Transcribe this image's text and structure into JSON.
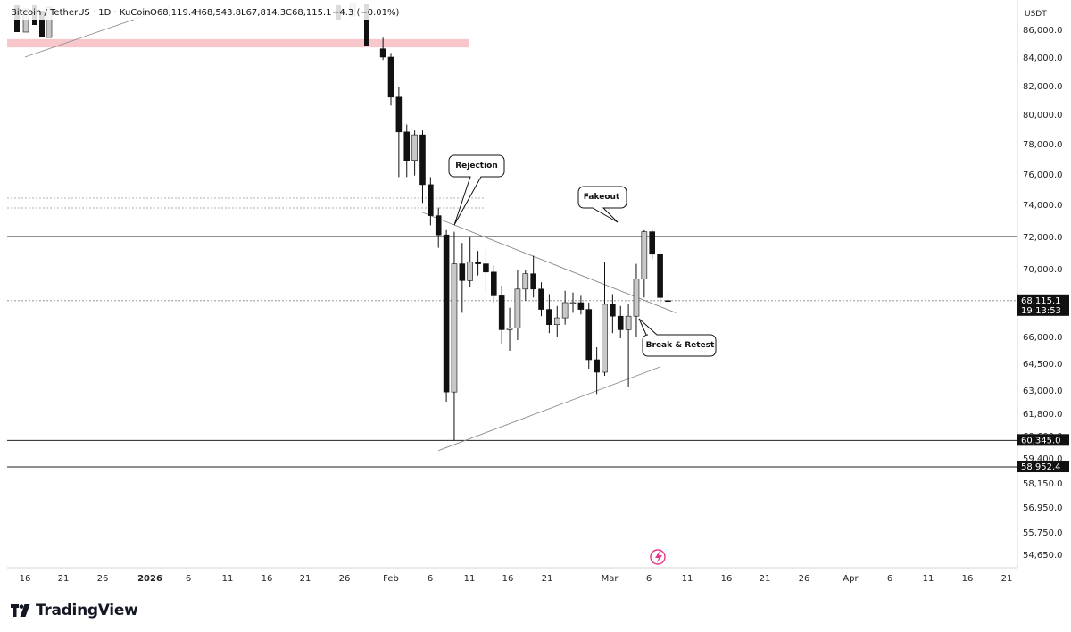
{
  "header": {
    "symbol": "Bitcoin / TetherUS · 1D · KuCoin",
    "open_label": "O68,119.4",
    "high_label": "H68,543.8",
    "low_label": "L67,814.3",
    "close_label": "C68,115.1",
    "change_label": "−4.3 (−0.01%)"
  },
  "price_axis": {
    "currency": "USDT",
    "ticks": [
      "86,000.0",
      "84,000.0",
      "82,000.0",
      "80,000.0",
      "78,000.0",
      "76,000.0",
      "74,000.0",
      "72,000.0",
      "70,000.0",
      "68,000.0",
      "66,000.0",
      "64,500.0",
      "63,000.0",
      "61,800.0",
      "60,600.0",
      "59,400.0",
      "58,150.0",
      "56,950.0",
      "55,750.0",
      "54,650.0"
    ],
    "last_price": "68,115.1",
    "countdown": "19:13:53",
    "level_tags": [
      "60,345.0",
      "58,952.4"
    ]
  },
  "time_axis": {
    "ticks": [
      "16",
      "21",
      "26",
      "2026",
      "6",
      "11",
      "16",
      "21",
      "26",
      "Feb",
      "6",
      "11",
      "16",
      "21",
      "Mar",
      "6",
      "11",
      "16",
      "21",
      "26",
      "Apr",
      "6",
      "11",
      "16",
      "21"
    ]
  },
  "annotations": {
    "rejection": "Rejection",
    "fakeout": "Fakeout",
    "break_retest": "Break & Retest"
  },
  "brand": {
    "name": "TradingView"
  },
  "colors": {
    "up_candle": "#c8c8c8",
    "down_candle": "#111111",
    "supply_zone": "#f7c7cc",
    "grid": "#eeeeee",
    "tag_background": "#111111"
  },
  "chart_data": {
    "type": "candlestick",
    "title": "Bitcoin / TetherUS · 1D · KuCoin",
    "ylabel": "USDT",
    "ylim": [
      54100,
      87200
    ],
    "x_axis_ticks": [
      "16 Dec",
      "21 Dec",
      "26 Dec",
      "2026",
      "6 Jan",
      "11 Jan",
      "16 Jan",
      "21 Jan",
      "26 Jan",
      "Feb",
      "6 Feb",
      "11 Feb",
      "16 Feb",
      "21 Feb",
      "Mar",
      "6 Mar",
      "11 Mar",
      "16 Mar",
      "21 Mar",
      "26 Mar",
      "Apr",
      "6 Apr",
      "11 Apr",
      "16 Apr",
      "21 Apr"
    ],
    "ohlc": {
      "open": 68119.4,
      "high": 68543.8,
      "low": 67814.3,
      "close": 68115.1,
      "change": -4.3,
      "change_pct": -0.01
    },
    "candles": [
      {
        "date": "2026-01-31",
        "open": 84600,
        "high": 85400,
        "low": 83800,
        "close": 84000
      },
      {
        "date": "2026-02-01",
        "open": 84000,
        "high": 84300,
        "low": 80600,
        "close": 81200
      },
      {
        "date": "2026-02-02",
        "open": 81200,
        "high": 81900,
        "low": 75800,
        "close": 78800
      },
      {
        "date": "2026-02-03",
        "open": 78800,
        "high": 79300,
        "low": 75800,
        "close": 76900
      },
      {
        "date": "2026-02-04",
        "open": 76900,
        "high": 78900,
        "low": 75900,
        "close": 78600
      },
      {
        "date": "2026-02-05",
        "open": 78600,
        "high": 78900,
        "low": 74100,
        "close": 75300
      },
      {
        "date": "2026-02-06",
        "open": 75300,
        "high": 75800,
        "low": 72700,
        "close": 73300
      },
      {
        "date": "2026-02-07",
        "open": 73300,
        "high": 73800,
        "low": 71300,
        "close": 72100
      },
      {
        "date": "2026-02-08",
        "open": 72100,
        "high": 72400,
        "low": 62400,
        "close": 62900
      },
      {
        "date": "2026-02-09",
        "open": 62900,
        "high": 72300,
        "low": 60345,
        "close": 70300
      },
      {
        "date": "2026-02-10",
        "open": 70300,
        "high": 71600,
        "low": 67400,
        "close": 69300
      },
      {
        "date": "2026-02-11",
        "open": 69300,
        "high": 72000,
        "low": 68900,
        "close": 70400
      },
      {
        "date": "2026-02-12",
        "open": 70400,
        "high": 71100,
        "low": 69600,
        "close": 70300
      },
      {
        "date": "2026-02-13",
        "open": 70300,
        "high": 71200,
        "low": 68600,
        "close": 69800
      },
      {
        "date": "2026-02-14",
        "open": 69800,
        "high": 70200,
        "low": 68000,
        "close": 68400
      },
      {
        "date": "2026-02-15",
        "open": 68400,
        "high": 69000,
        "low": 65600,
        "close": 66400
      },
      {
        "date": "2026-02-16",
        "open": 66400,
        "high": 67700,
        "low": 65200,
        "close": 66500
      },
      {
        "date": "2026-02-17",
        "open": 66500,
        "high": 69900,
        "low": 65800,
        "close": 68800
      },
      {
        "date": "2026-02-18",
        "open": 68800,
        "high": 69900,
        "low": 68100,
        "close": 69700
      },
      {
        "date": "2026-02-19",
        "open": 69700,
        "high": 70800,
        "low": 68300,
        "close": 68800
      },
      {
        "date": "2026-02-20",
        "open": 68800,
        "high": 69200,
        "low": 67200,
        "close": 67600
      },
      {
        "date": "2026-02-21",
        "open": 67600,
        "high": 68500,
        "low": 66200,
        "close": 66700
      },
      {
        "date": "2026-02-22",
        "open": 66700,
        "high": 67800,
        "low": 66000,
        "close": 67100
      },
      {
        "date": "2026-02-23",
        "open": 67100,
        "high": 68700,
        "low": 66700,
        "close": 68000
      },
      {
        "date": "2026-02-24",
        "open": 68000,
        "high": 68600,
        "low": 67400,
        "close": 68000
      },
      {
        "date": "2026-02-25",
        "open": 68000,
        "high": 68400,
        "low": 67300,
        "close": 67600
      },
      {
        "date": "2026-02-26",
        "open": 67600,
        "high": 68000,
        "low": 64200,
        "close": 64700
      },
      {
        "date": "2026-02-27",
        "open": 64700,
        "high": 65400,
        "low": 62800,
        "close": 64000
      },
      {
        "date": "2026-02-28",
        "open": 64000,
        "high": 70400,
        "low": 63800,
        "close": 67900
      },
      {
        "date": "2026-03-01",
        "open": 67900,
        "high": 68500,
        "low": 66200,
        "close": 67200
      },
      {
        "date": "2026-03-02",
        "open": 67200,
        "high": 67800,
        "low": 65900,
        "close": 66400
      },
      {
        "date": "2026-03-03",
        "open": 66400,
        "high": 67900,
        "low": 63200,
        "close": 67200
      },
      {
        "date": "2026-03-04",
        "open": 67200,
        "high": 70300,
        "low": 66000,
        "close": 69400
      },
      {
        "date": "2026-03-05",
        "open": 69400,
        "high": 72400,
        "low": 68300,
        "close": 72300
      },
      {
        "date": "2026-03-06",
        "open": 72300,
        "high": 72400,
        "low": 70600,
        "close": 70900
      },
      {
        "date": "2026-03-07",
        "open": 70900,
        "high": 71100,
        "low": 67900,
        "close": 68300
      },
      {
        "date": "2026-03-08",
        "open": 68119.4,
        "high": 68543.8,
        "low": 67814.3,
        "close": 68115.1
      }
    ],
    "horizontal_levels": [
      {
        "price": 72000,
        "style": "solid"
      },
      {
        "price": 68115.1,
        "style": "dotted"
      },
      {
        "price": 60345.0,
        "style": "solid"
      },
      {
        "price": 58952.4,
        "style": "solid"
      }
    ],
    "supply_zone": {
      "from": 84700,
      "to": 85300
    },
    "trendlines": [
      {
        "from": {
          "date": "2026-02-05",
          "price": 73500
        },
        "to": {
          "date": "2026-03-09",
          "price": 67400
        }
      },
      {
        "from": {
          "date": "2026-02-07",
          "price": 59800
        },
        "to": {
          "date": "2026-03-07",
          "price": 64300
        }
      }
    ],
    "callouts": [
      {
        "text": "Rejection",
        "date": "2026-02-10",
        "price": 72300
      },
      {
        "text": "Fakeout",
        "date": "2026-03-05",
        "price": 72900
      },
      {
        "text": "Break & Retest",
        "date": "2026-03-06",
        "price": 68200
      }
    ]
  }
}
